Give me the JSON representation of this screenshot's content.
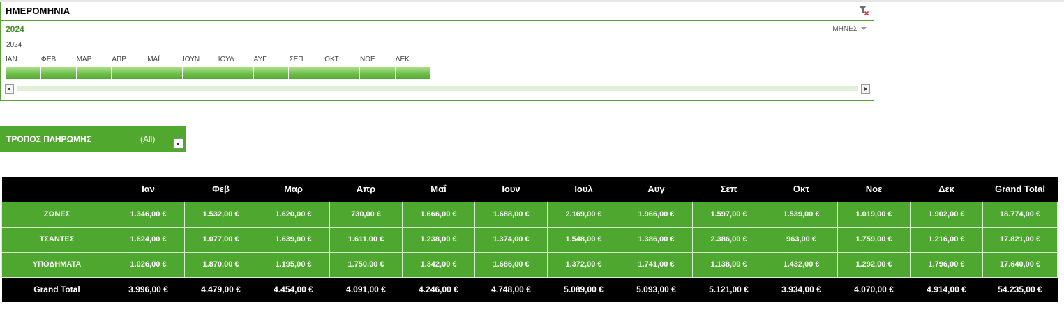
{
  "timeline": {
    "title": "ΗΜΕΡΟΜΗΝΙΑ",
    "selected": "2024",
    "level": "ΜΗΝΕΣ",
    "year": "2024",
    "months": [
      "ΙΑΝ",
      "ΦΕΒ",
      "ΜΑΡ",
      "ΑΠΡ",
      "ΜΑΪ",
      "ΙΟΥΝ",
      "ΙΟΥΛ",
      "ΑΥΓ",
      "ΣΕΠ",
      "ΟΚΤ",
      "ΝΟΕ",
      "ΔΕΚ"
    ],
    "accent_color": "#5aa233"
  },
  "filter": {
    "label": "ΤΡΟΠΟΣ ΠΛΗΡΩΜΗΣ",
    "value": "(All)"
  },
  "pivot": {
    "columns": [
      "Ιαν",
      "Φεβ",
      "Μαρ",
      "Απρ",
      "Μαΐ",
      "Ιουν",
      "Ιουλ",
      "Αυγ",
      "Σεπ",
      "Οκτ",
      "Νοε",
      "Δεκ",
      "Grand Total"
    ],
    "rows": [
      {
        "label": "ΖΩΝΕΣ",
        "values": [
          "1.346,00 €",
          "1.532,00 €",
          "1.620,00 €",
          "730,00 €",
          "1.666,00 €",
          "1.688,00 €",
          "2.169,00 €",
          "1.966,00 €",
          "1.597,00 €",
          "1.539,00 €",
          "1.019,00 €",
          "1.902,00 €",
          "18.774,00 €"
        ]
      },
      {
        "label": "ΤΣΑΝΤΕΣ",
        "values": [
          "1.624,00 €",
          "1.077,00 €",
          "1.639,00 €",
          "1.611,00 €",
          "1.238,00 €",
          "1.374,00 €",
          "1.548,00 €",
          "1.386,00 €",
          "2.386,00 €",
          "963,00 €",
          "1.759,00 €",
          "1.216,00 €",
          "17.821,00 €"
        ]
      },
      {
        "label": "ΥΠΟΔΗΜΑΤΑ",
        "values": [
          "1.026,00 €",
          "1.870,00 €",
          "1.195,00 €",
          "1.750,00 €",
          "1.342,00 €",
          "1.686,00 €",
          "1.372,00 €",
          "1.741,00 €",
          "1.138,00 €",
          "1.432,00 €",
          "1.292,00 €",
          "1.796,00 €",
          "17.640,00 €"
        ]
      }
    ],
    "total": {
      "label": "Grand Total",
      "values": [
        "3.996,00 €",
        "4.479,00 €",
        "4.454,00 €",
        "4.091,00 €",
        "4.246,00 €",
        "4.748,00 €",
        "5.089,00 €",
        "5.093,00 €",
        "5.121,00 €",
        "3.934,00 €",
        "4.070,00 €",
        "4.914,00 €",
        "54.235,00 €"
      ]
    },
    "header_color": "#000000",
    "body_color": "#4ea72e"
  }
}
